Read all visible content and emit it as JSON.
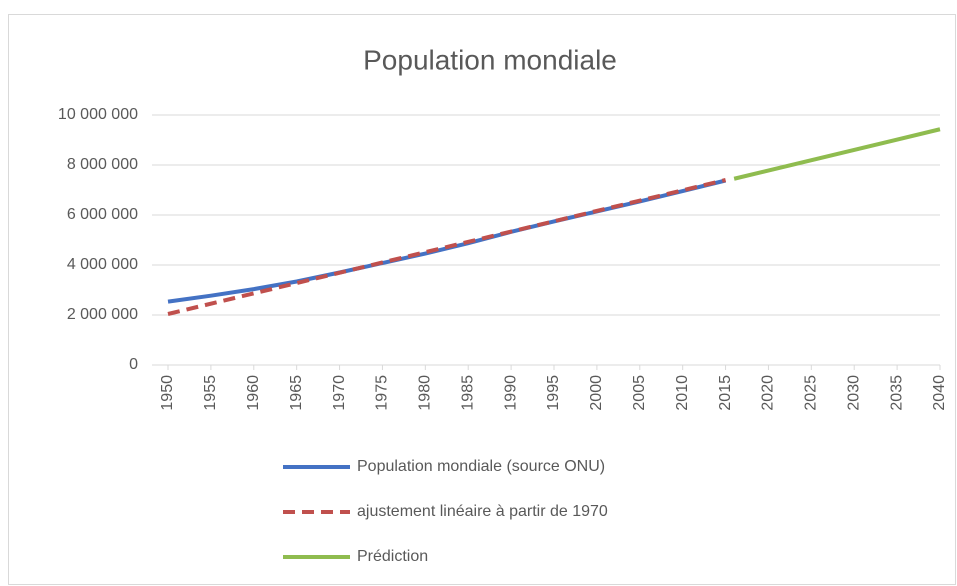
{
  "chart_data": {
    "type": "line",
    "title": "Population mondiale",
    "xlim": [
      1950,
      2040
    ],
    "xticks": [
      1950,
      1955,
      1960,
      1965,
      1970,
      1975,
      1980,
      1985,
      1990,
      1995,
      2000,
      2005,
      2010,
      2015,
      2020,
      2025,
      2030,
      2035,
      2040
    ],
    "ylim": [
      0,
      10000000
    ],
    "yticks": [
      0,
      {
        "value": 2000000,
        "label": "2 000 000"
      },
      {
        "value": 4000000,
        "label": "4 000 000"
      },
      {
        "value": 6000000,
        "label": "6 000 000"
      },
      {
        "value": 8000000,
        "label": "8 000 000"
      },
      {
        "value": 10000000,
        "label": "10 000 000"
      }
    ],
    "grid": true,
    "legend": "bottom",
    "series": [
      {
        "name": "Population mondiale (source ONU)",
        "color": "#4472c4",
        "style": "solid",
        "x": [
          1950,
          1955,
          1960,
          1965,
          1970,
          1975,
          1980,
          1985,
          1990,
          1995,
          2000,
          2005,
          2010,
          2015
        ],
        "values": [
          2536000,
          2773000,
          3035000,
          3340000,
          3700000,
          4079000,
          4458000,
          4871000,
          5327000,
          5744000,
          6143000,
          6542000,
          6957000,
          7380000
        ]
      },
      {
        "name": "ajustement linéaire à partir de 1970",
        "color": "#c0504d",
        "style": "dashed",
        "x": [
          1950,
          2015
        ],
        "values": [
          2040000,
          7400000
        ]
      },
      {
        "name": "Prédiction",
        "color": "#8fbc4f",
        "style": "solid",
        "x": [
          2016,
          2040
        ],
        "values": [
          7450000,
          9430000
        ]
      }
    ]
  }
}
